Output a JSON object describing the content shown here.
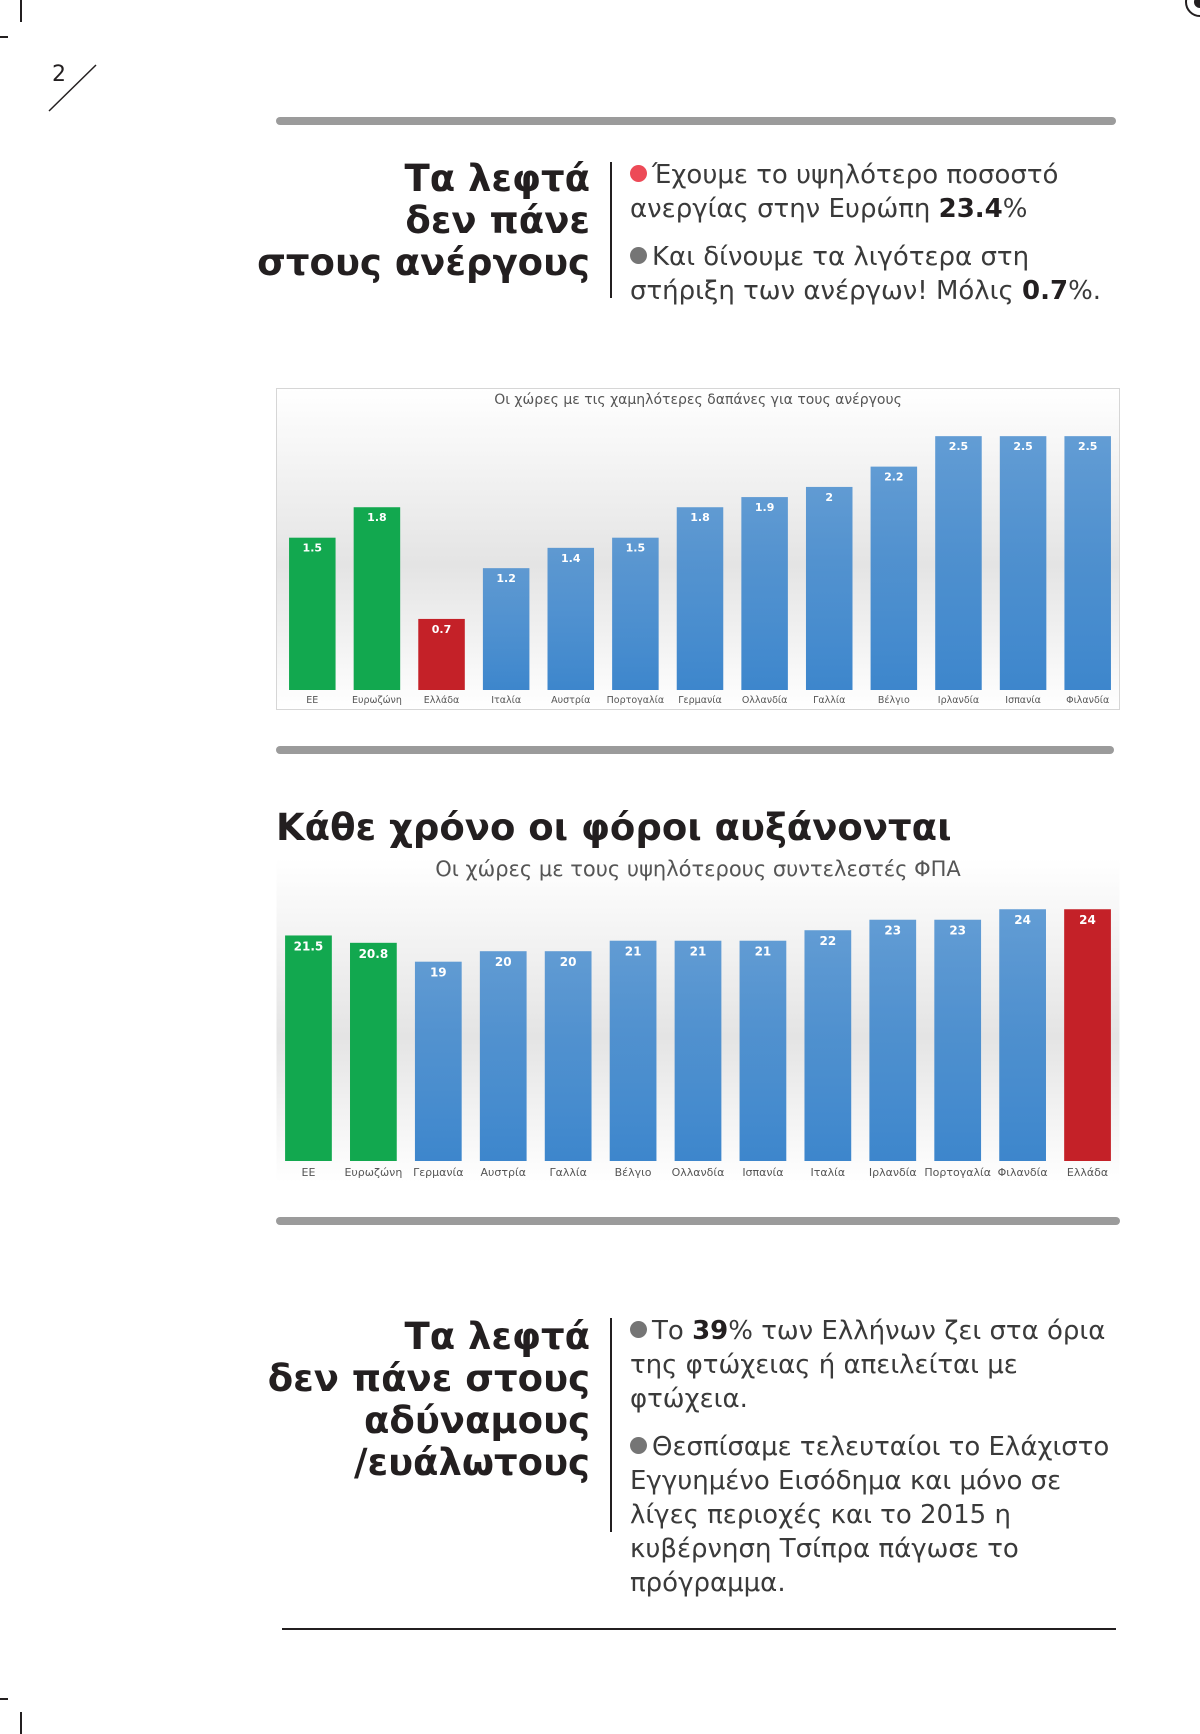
{
  "page": {
    "number": "2"
  },
  "unemployment": {
    "title_lines": [
      "Τα λεφτά",
      "δεν πάνε",
      "στους ανέργους"
    ],
    "bullets": [
      {
        "color": "red",
        "text": "Έχουμε το υψηλότερο ποσοστό ανεργίας στην Ευρώπη ",
        "bold": "23.4",
        "after": "%"
      },
      {
        "color": "gray",
        "text": "Και δίνουμε τα λιγότερα στη στήριξη των ανέργων! Μόλις ",
        "bold": "0.7",
        "after": "%."
      }
    ]
  },
  "vat_section": {
    "heading": "Κάθε χρόνο οι φόροι αυξάνονται"
  },
  "vulnerable": {
    "title_lines": [
      "Τα λεφτά",
      "δεν πάνε στους",
      "αδύναμους",
      "/ευάλωτους"
    ],
    "bullets": [
      {
        "color": "gray",
        "text": "Το ",
        "bold": "39",
        "after": "% των Ελλήνων ζει στα όρια της φτώχειας ή απειλείται με φτώχεια."
      },
      {
        "color": "gray",
        "text": "Θεσπίσαμε τελευταίοι το Ελάχιστο Εγγυημένο Εισόδημα και μόνο σε λίγες περιοχές και το 2015 η κυβέρνηση Τσίπρα πάγωσε το πρόγραμμα.",
        "bold": "",
        "after": ""
      }
    ]
  },
  "chart_data": [
    {
      "type": "bar",
      "title": "Οι χώρες με τις χαμηλότερες δαπάνες για τους ανέργους",
      "categories": [
        "ΕΕ",
        "Ευρωζώνη",
        "Ελλάδα",
        "Ιταλία",
        "Αυστρία",
        "Πορτογαλία",
        "Γερμανία",
        "Ολλανδία",
        "Γαλλία",
        "Βέλγιο",
        "Ιρλανδία",
        "Ισπανία",
        "Φιλανδία"
      ],
      "values": [
        1.5,
        1.8,
        0.7,
        1.2,
        1.4,
        1.5,
        1.8,
        1.9,
        2,
        2.2,
        2.5,
        2.5,
        2.5
      ],
      "value_labels": [
        "1.5",
        "1.8",
        "0.7",
        "1.2",
        "1.4",
        "1.5",
        "1.8",
        "1.9",
        "2",
        "2.2",
        "2.5",
        "2.5",
        "2.5"
      ],
      "bar_colors": [
        "#12a84f",
        "#12a84f",
        "#c42128",
        "#3d86cc",
        "#3d86cc",
        "#3d86cc",
        "#3d86cc",
        "#3d86cc",
        "#3d86cc",
        "#3d86cc",
        "#3d86cc",
        "#3d86cc",
        "#3d86cc"
      ],
      "ylim": [
        0,
        2.6
      ],
      "xlabel": "",
      "ylabel": "",
      "grid": false,
      "legend": "none"
    },
    {
      "type": "bar",
      "title": "Οι χώρες με τους υψηλότερους συντελεστές ΦΠΑ",
      "categories": [
        "ΕΕ",
        "Ευρωζώνη",
        "Γερμανία",
        "Αυστρία",
        "Γαλλία",
        "Βέλγιο",
        "Ολλανδία",
        "Ισπανία",
        "Ιταλία",
        "Ιρλανδία",
        "Πορτογαλία",
        "Φιλανδία",
        "Ελλάδα"
      ],
      "values": [
        21.5,
        20.8,
        19,
        20,
        20,
        21,
        21,
        21,
        22,
        23,
        23,
        24,
        24
      ],
      "value_labels": [
        "21.5",
        "20.8",
        "19",
        "20",
        "20",
        "21",
        "21",
        "21",
        "22",
        "23",
        "23",
        "24",
        "24"
      ],
      "bar_colors": [
        "#12a84f",
        "#12a84f",
        "#3d86cc",
        "#3d86cc",
        "#3d86cc",
        "#3d86cc",
        "#3d86cc",
        "#3d86cc",
        "#3d86cc",
        "#3d86cc",
        "#3d86cc",
        "#3d86cc",
        "#c42128"
      ],
      "ylim": [
        0,
        24.5
      ],
      "xlabel": "",
      "ylabel": "",
      "grid": false,
      "legend": "none"
    }
  ]
}
